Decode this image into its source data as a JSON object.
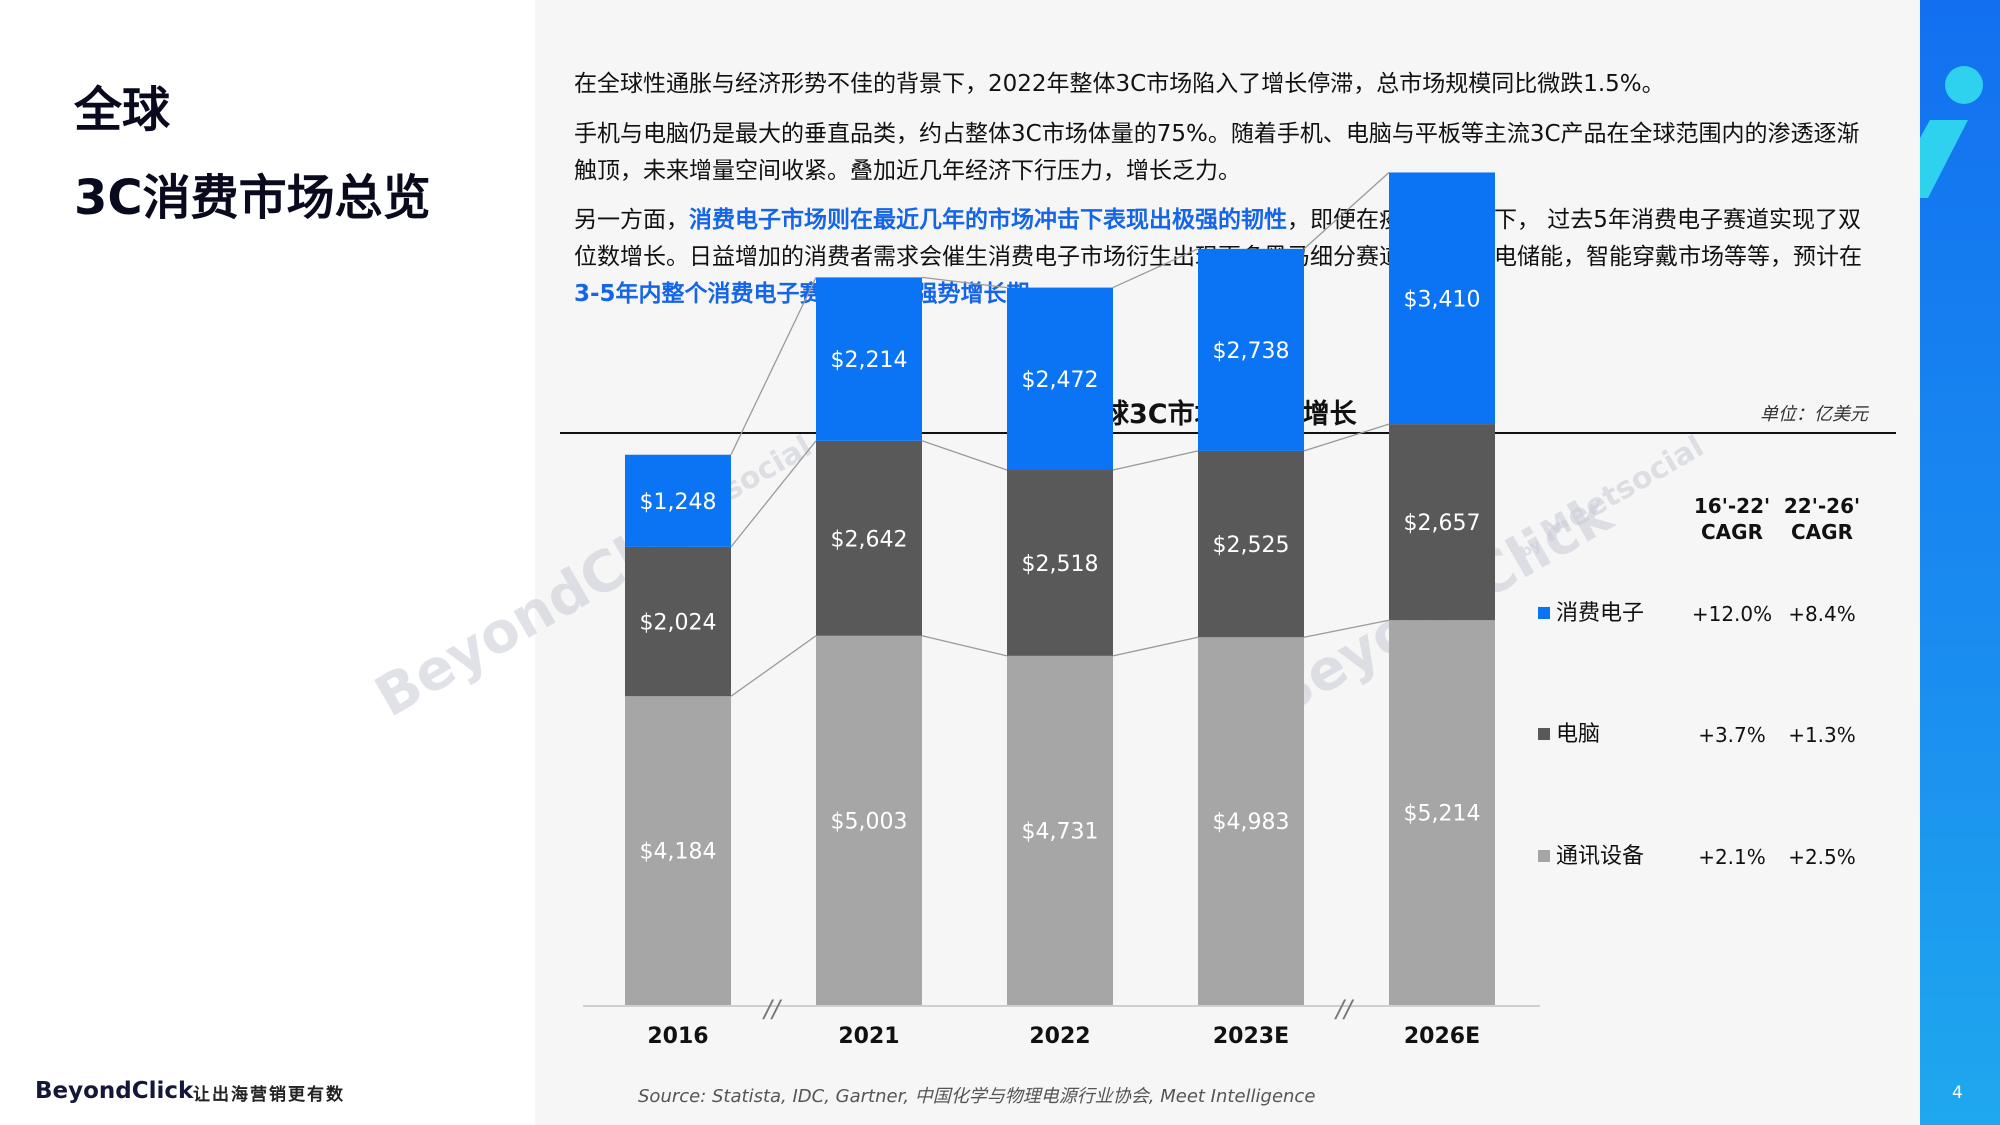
{
  "header": {
    "title_line1": "全球",
    "title_line2": "3C消费市场总览"
  },
  "paragraphs": {
    "p1": "在全球性通胀与经济形势不佳的背景下，2022年整体3C市场陷入了增长停滞，总市场规模同比微跌1.5%。",
    "p2": "手机与电脑仍是最大的垂直品类，约占整体3C市场体量的75%。随着手机、电脑与平板等主流3C产品在全球范围内的渗透逐渐触顶，未来增量空间收紧。叠加近几年经济下行压力，增长乏力。",
    "p3_a": "另一方面，",
    "p3_b": "消费电子市场则在最近几年的市场冲击下表现出极强的韧性",
    "p3_c": "，即便在疫情的冲击下， 过去5年消费电子赛道实现了双位数增长。日益增加的消费者需求会催生消费电子市场衍生出现更多黑马细分赛道，例如充电储能，智能穿戴市场等等，预计在",
    "p3_d": "3-5年内整个消费电子赛道会迎来强势增长期",
    "p3_e": "。"
  },
  "chart_data": {
    "type": "bar",
    "stacked": true,
    "title": "全球3C市场规模及增长",
    "unit": "单位：亿美元",
    "categories": [
      "2016",
      "2021",
      "2022",
      "2023E",
      "2026E"
    ],
    "series": [
      {
        "name": "通讯设备",
        "values": [
          4184,
          5003,
          4731,
          4983,
          5214
        ],
        "labels": [
          "$4,184",
          "$5,003",
          "$4,731",
          "$4,983",
          "$5,214"
        ],
        "color": "#a6a6a6",
        "cagr_16_22": "+2.1%",
        "cagr_22_26": "+2.5%"
      },
      {
        "name": "电脑",
        "values": [
          2024,
          2642,
          2518,
          2525,
          2657
        ],
        "labels": [
          "$2,024",
          "$2,642",
          "$2,518",
          "$2,525",
          "$2,657"
        ],
        "color": "#595959",
        "cagr_16_22": "+3.7%",
        "cagr_22_26": "+1.3%"
      },
      {
        "name": "消费电子",
        "values": [
          1248,
          2214,
          2472,
          2738,
          3410
        ],
        "labels": [
          "$1,248",
          "$2,214",
          "$2,472",
          "$2,738",
          "$3,410"
        ],
        "color": "#0a74f5",
        "cagr_16_22": "+12.0%",
        "cagr_22_26": "+8.4%"
      }
    ],
    "cagr_headers": [
      [
        "16'-22'",
        "CAGR"
      ],
      [
        "22'-26'",
        "CAGR"
      ]
    ],
    "axis_break_marks": [
      "//",
      "//"
    ]
  },
  "source": "Source: Statista, IDC, Gartner, 中国化学与物理电源行业协会, Meet Intelligence",
  "footer": {
    "brand": "BeyondClick",
    "slogan": "让出海营销更有数",
    "page": "4"
  },
  "watermark": {
    "text": "BeyondClick",
    "by": "by",
    "sub": "Meetsocial"
  }
}
